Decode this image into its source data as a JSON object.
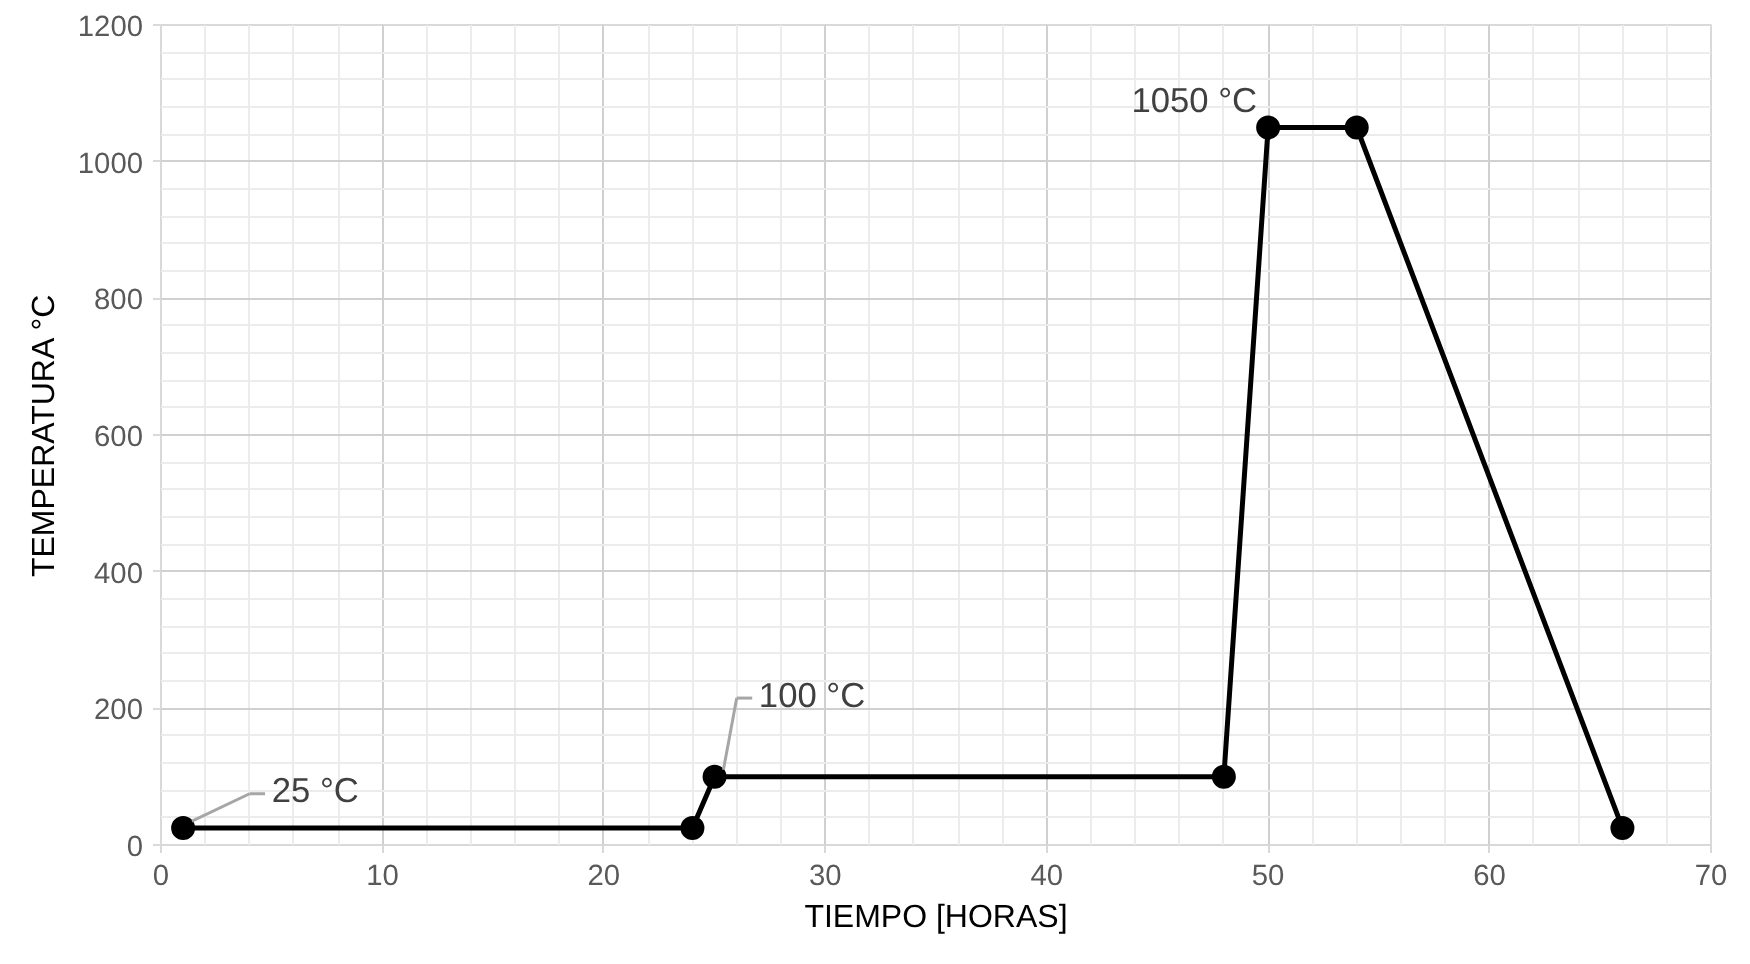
{
  "chart_data": {
    "type": "line",
    "xlabel": "TIEMPO [HORAS]",
    "ylabel": "TEMPERATURA °C",
    "x": [
      1,
      24,
      25,
      48,
      50,
      54,
      66
    ],
    "series": [
      {
        "color": "#000000",
        "values": [
          25,
          25,
          100,
          100,
          1050,
          1050,
          25
        ]
      }
    ],
    "xlim": [
      0,
      70
    ],
    "xticks": [
      0,
      10,
      20,
      30,
      40,
      50,
      60,
      70
    ],
    "ylim": [
      0,
      1200
    ],
    "yticks": [
      0,
      200,
      400,
      600,
      800,
      1000,
      1200
    ],
    "grid": true,
    "marker": "circle",
    "line_style": "solid",
    "annotations": [
      {
        "text": "25 °C",
        "x": 1,
        "y": 25
      },
      {
        "text": "100 °C",
        "x": 25,
        "y": 100
      },
      {
        "text": "1050 °C",
        "x": 50,
        "y": 1050
      }
    ]
  }
}
